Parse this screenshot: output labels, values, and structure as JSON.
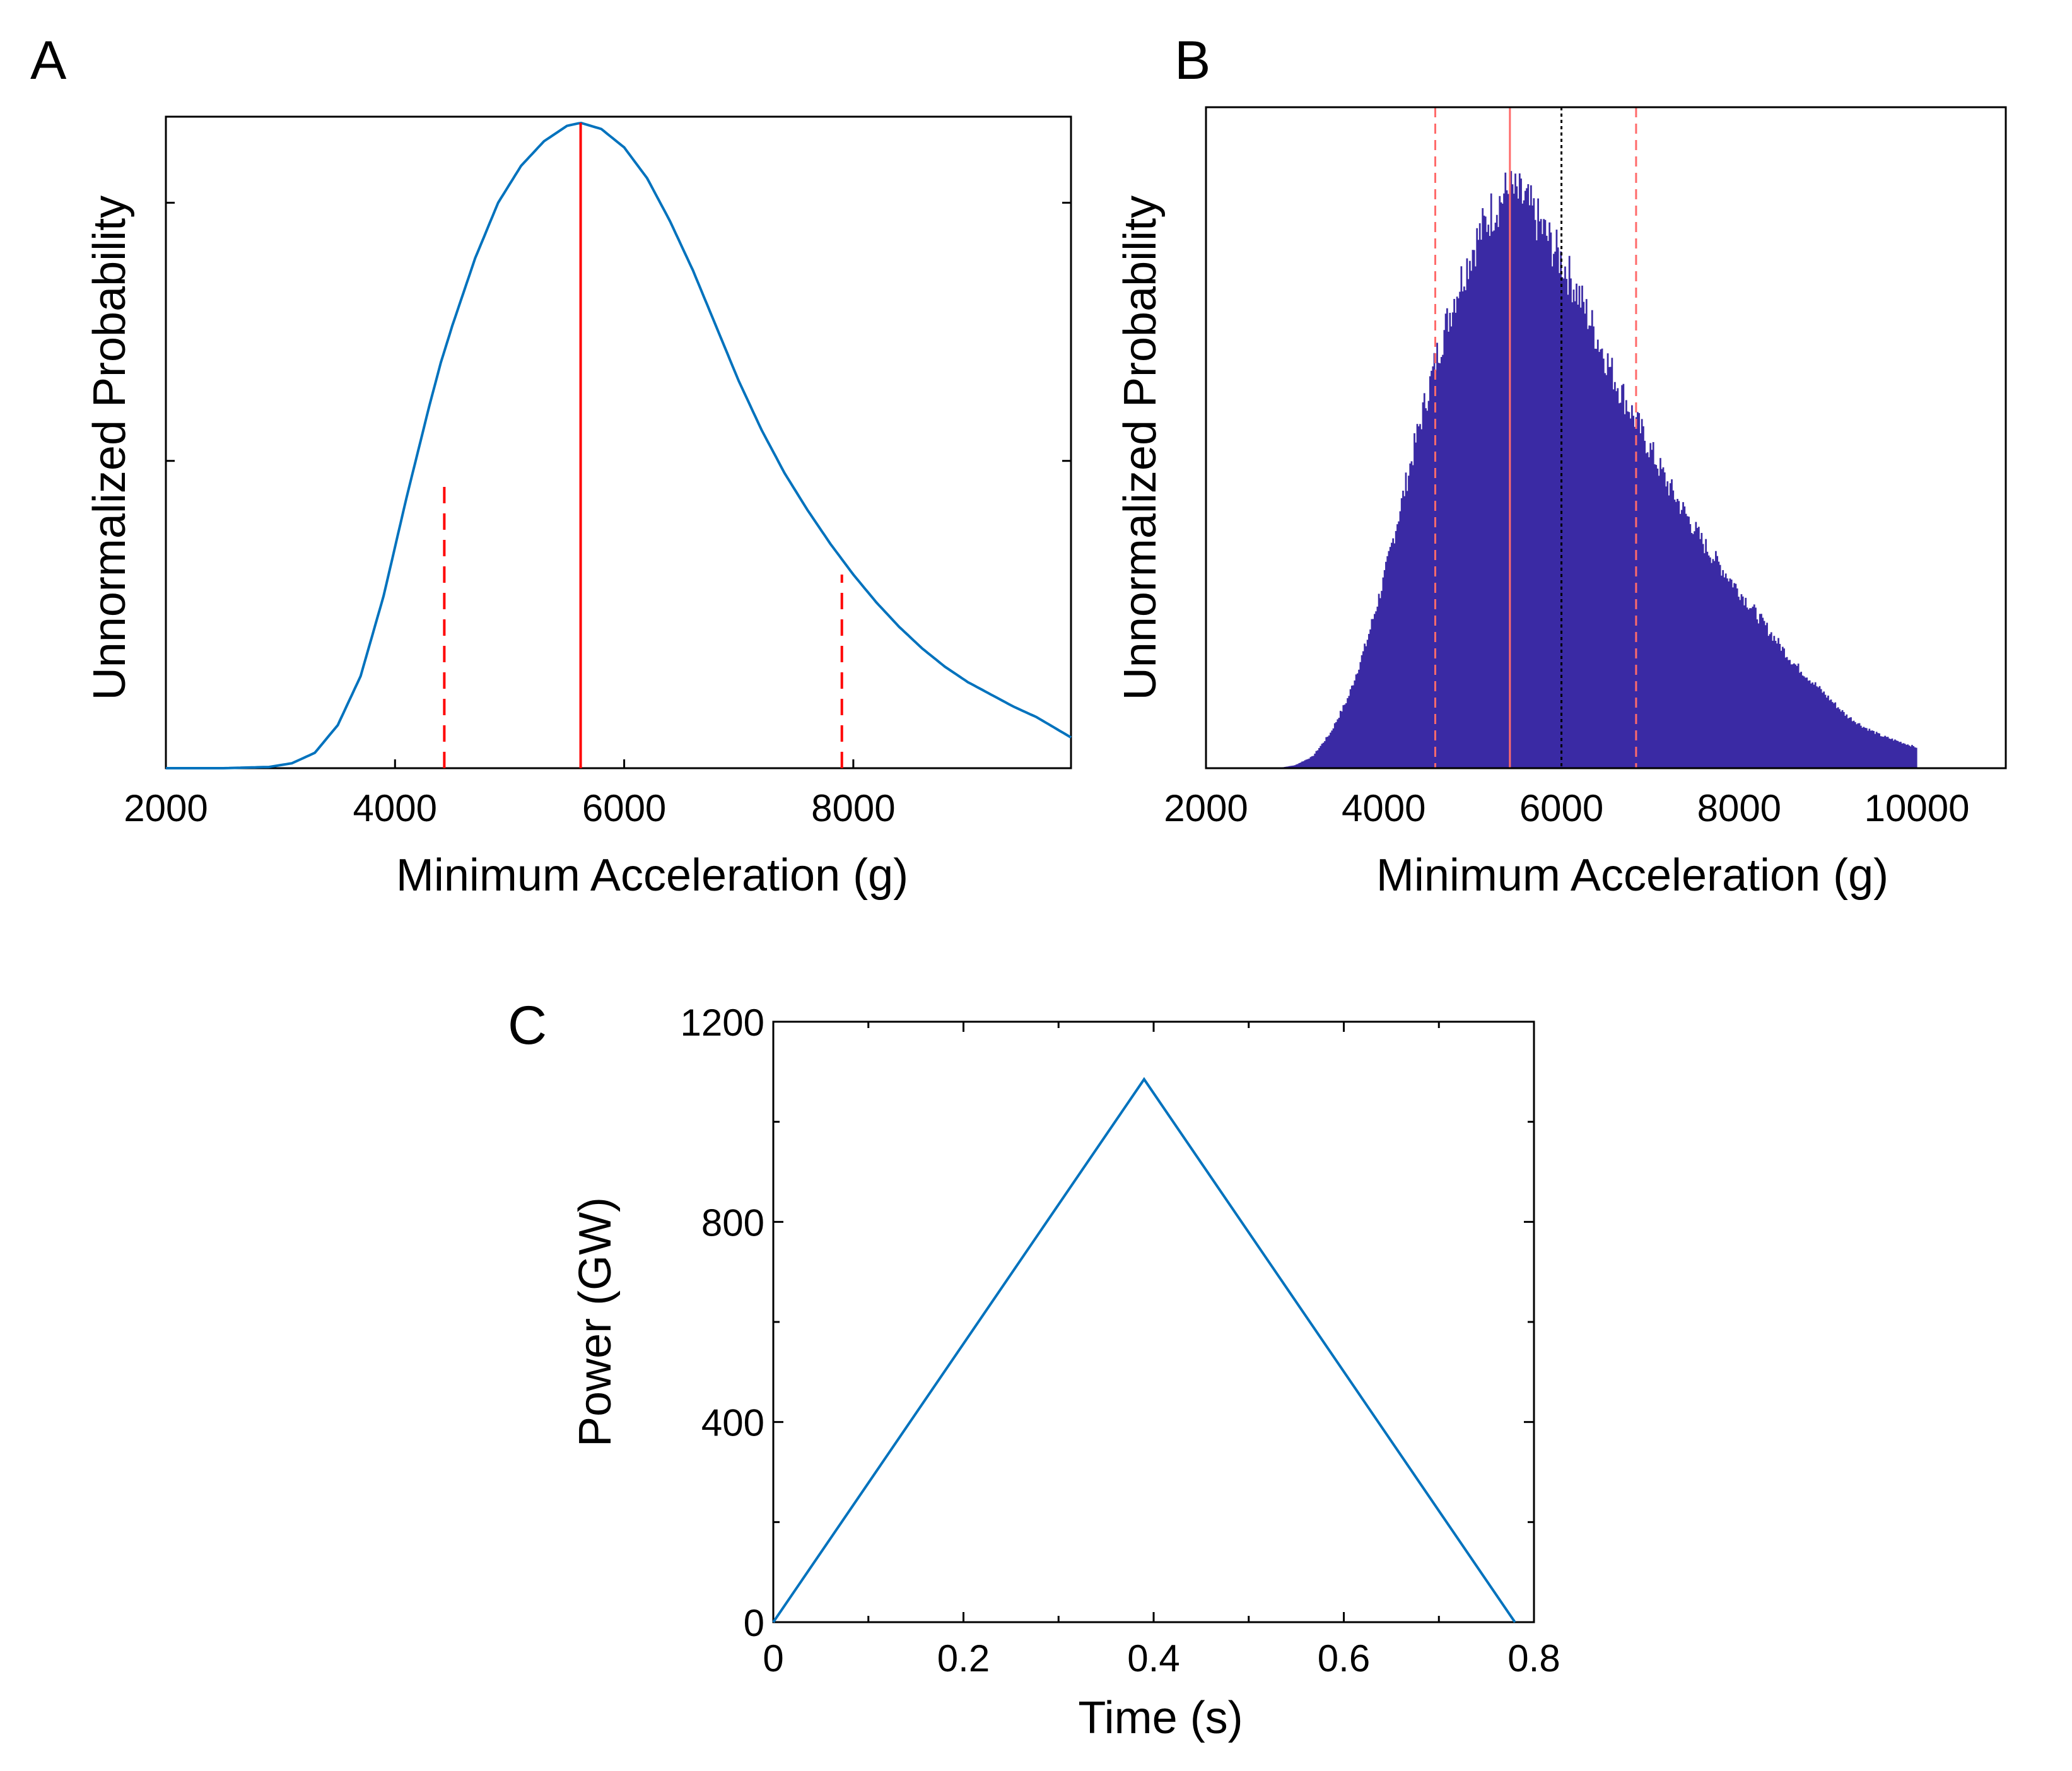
{
  "chart_data": [
    {
      "panel": "A",
      "type": "line",
      "xlabel": "Minimum Acceleration (g)",
      "ylabel": "Unnormalized Probability",
      "xlim": [
        2000,
        9900
      ],
      "ylim": [
        0,
        1.06
      ],
      "xticks": [
        "2000",
        "4000",
        "6000",
        "8000"
      ],
      "xtick_values": [
        2000,
        4000,
        6000,
        8000
      ],
      "yticks_unlabeled": [
        0.5,
        0.92
      ],
      "series": [
        {
          "name": "probability curve",
          "color": "#0072BD",
          "x": [
            2000,
            2500,
            2900,
            3100,
            3300,
            3500,
            3700,
            3900,
            4100,
            4300,
            4400,
            4500,
            4700,
            4900,
            5100,
            5300,
            5500,
            5620,
            5800,
            6000,
            6200,
            6400,
            6600,
            6800,
            7000,
            7200,
            7400,
            7600,
            7800,
            7900,
            8000,
            8200,
            8400,
            8600,
            8800,
            9000,
            9200,
            9400,
            9600,
            9900
          ],
          "y": [
            0.0,
            0.0,
            0.002,
            0.008,
            0.025,
            0.07,
            0.15,
            0.28,
            0.44,
            0.59,
            0.66,
            0.72,
            0.83,
            0.92,
            0.98,
            1.02,
            1.045,
            1.05,
            1.04,
            1.01,
            0.96,
            0.89,
            0.81,
            0.72,
            0.63,
            0.55,
            0.48,
            0.42,
            0.365,
            0.34,
            0.315,
            0.27,
            0.23,
            0.195,
            0.165,
            0.14,
            0.12,
            0.1,
            0.083,
            0.05
          ]
        }
      ],
      "vertical_lines": [
        {
          "x": 4430,
          "y_top": 0.46,
          "style": "dashed",
          "color": "#FF0000"
        },
        {
          "x": 5620,
          "y_top": 1.05,
          "style": "solid",
          "color": "#FF0000"
        },
        {
          "x": 7900,
          "y_top": 0.315,
          "style": "dashed",
          "color": "#FF0000"
        }
      ]
    },
    {
      "panel": "B",
      "type": "bar",
      "subtype": "histogram",
      "xlabel": "Minimum Acceleration (g)",
      "ylabel": "Unnormalized Probability",
      "xlim": [
        2000,
        11000
      ],
      "ylim": [
        0,
        1.12
      ],
      "xticks": [
        "2000",
        "4000",
        "6000",
        "8000",
        "10000"
      ],
      "xtick_values": [
        2000,
        4000,
        6000,
        8000,
        10000
      ],
      "color": "#3A2AA4",
      "envelope": {
        "x": [
          2000,
          2800,
          3000,
          3200,
          3400,
          3600,
          3800,
          4000,
          4200,
          4400,
          4600,
          4800,
          5000,
          5200,
          5400,
          5600,
          5800,
          6000,
          6200,
          6400,
          6600,
          6800,
          7000,
          7200,
          7400,
          7600,
          7800,
          8000,
          8200,
          8400,
          8600,
          8800,
          9000,
          9200,
          9400,
          9600,
          9800,
          10000
        ],
        "y": [
          0.0,
          0.0,
          0.005,
          0.02,
          0.06,
          0.12,
          0.21,
          0.32,
          0.45,
          0.58,
          0.7,
          0.8,
          0.88,
          0.94,
          0.98,
          0.96,
          0.91,
          0.86,
          0.8,
          0.73,
          0.66,
          0.6,
          0.54,
          0.48,
          0.43,
          0.38,
          0.34,
          0.3,
          0.26,
          0.22,
          0.18,
          0.15,
          0.12,
          0.09,
          0.07,
          0.055,
          0.045,
          0.035
        ]
      },
      "vertical_lines": [
        {
          "x": 4580,
          "style": "dashed",
          "color": "#FF6B6B"
        },
        {
          "x": 5420,
          "style": "solid",
          "color": "#FF6B6B"
        },
        {
          "x": 6000,
          "style": "dotted",
          "color": "#000000"
        },
        {
          "x": 6840,
          "style": "dashed",
          "color": "#FF6B6B"
        }
      ]
    },
    {
      "panel": "C",
      "type": "line",
      "xlabel": "Time (s)",
      "ylabel": "Power (GW)",
      "xlim": [
        0,
        0.8
      ],
      "ylim": [
        0,
        1200
      ],
      "xticks": [
        "0",
        "0.2",
        "0.4",
        "0.6",
        "0.8"
      ],
      "xtick_values": [
        0,
        0.2,
        0.4,
        0.6,
        0.8
      ],
      "yticks": [
        "0",
        "400",
        "800",
        "1200"
      ],
      "ytick_values": [
        0,
        400,
        800,
        1200
      ],
      "series": [
        {
          "name": "power",
          "color": "#0072BD",
          "x": [
            0,
            0.39,
            0.78
          ],
          "y": [
            0,
            1085,
            0
          ]
        }
      ]
    }
  ]
}
